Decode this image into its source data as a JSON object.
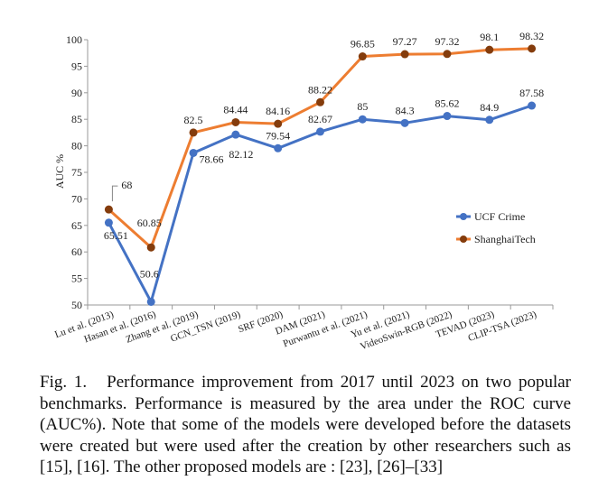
{
  "chart_data": {
    "type": "line",
    "ylabel": "AUC %",
    "xlabel": "",
    "ylim": [
      50,
      100
    ],
    "yticks": [
      50,
      55,
      60,
      65,
      70,
      75,
      80,
      85,
      90,
      95,
      100
    ],
    "grid": false,
    "legend_position": "right",
    "categories": [
      "Lu et al. (2013)",
      "Hasan et al. (2016)",
      "Zhang et al. (2019)",
      "GCN_TSN (2019)",
      "SRF (2020)",
      "DAM (2021)",
      "Purwantu et al. (2021)",
      "Yu et al. (2021)",
      "VideoSwin-RGB (2022)",
      "TEVAD (2023)",
      "CLIP-TSA (2023)"
    ],
    "series": [
      {
        "name": "UCF Crime",
        "color": "#4472c4",
        "values": [
          65.51,
          50.6,
          78.66,
          82.12,
          79.54,
          82.67,
          85,
          84.3,
          85.62,
          84.9,
          87.58
        ],
        "labels": [
          "65.51",
          "50.6",
          "78.66",
          "82.12",
          "79.54",
          "82.67",
          "85",
          "84.3",
          "85.62",
          "84.9",
          "87.58"
        ]
      },
      {
        "name": "ShanghaiTech",
        "color": "#ed7d31",
        "marker_color": "#843c0c",
        "values": [
          68,
          60.85,
          82.5,
          84.44,
          84.16,
          88.22,
          96.85,
          97.27,
          97.32,
          98.1,
          98.32
        ],
        "labels": [
          "68",
          "60.85",
          "82.5",
          "84.44",
          "84.16",
          "88.22",
          "96.85",
          "97.27",
          "97.32",
          "98.1",
          "98.32"
        ]
      }
    ]
  },
  "caption": {
    "label": "Fig. 1.",
    "text": "Performance improvement from 2017 until 2023 on two popular benchmarks. Performance is measured by the area under the ROC curve (AUC%). Note that some of the models were developed before the datasets were created but were used after the creation by other researchers such as [15], [16]. The other proposed models are : [23], [26]–[33]"
  }
}
